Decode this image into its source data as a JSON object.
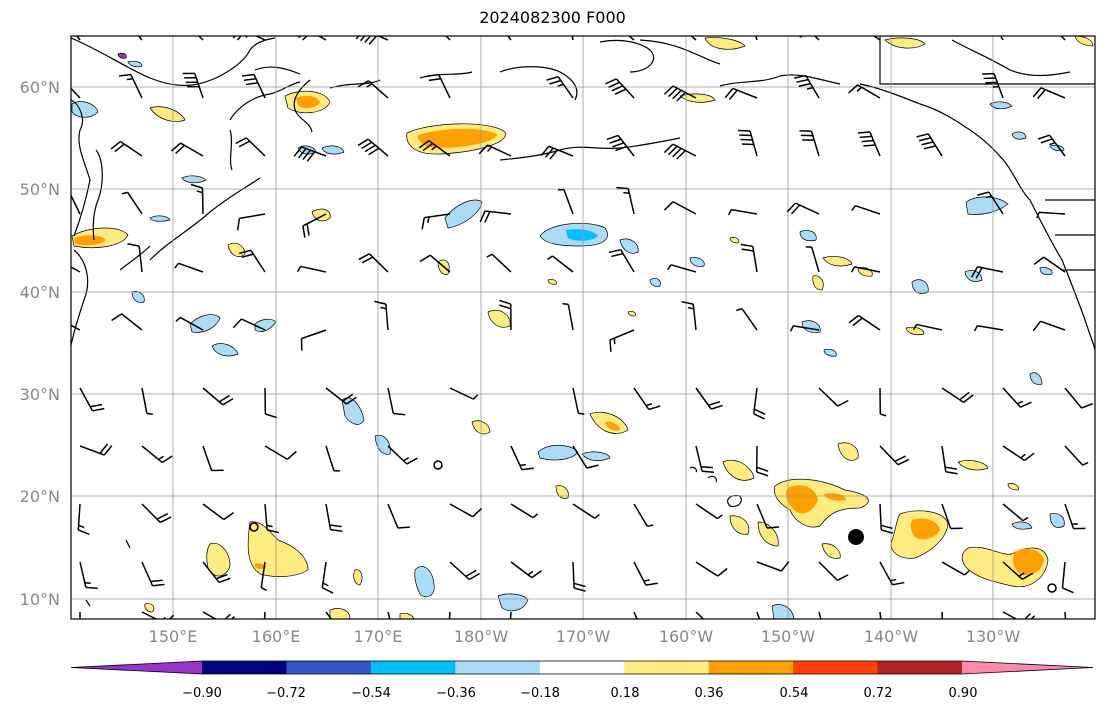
{
  "title": "2024082300 F000",
  "map": {
    "lon_range_east": [
      140,
      240
    ],
    "lat_range": [
      8,
      65
    ],
    "lat_labels": [
      "10°N",
      "20°N",
      "30°N",
      "40°N",
      "50°N",
      "60°N"
    ],
    "lon_labels": [
      "150°E",
      "160°E",
      "170°E",
      "180°W",
      "170°W",
      "160°W",
      "150°W",
      "140°W",
      "130°W"
    ],
    "grid": true
  },
  "colorbar": {
    "tick_labels": [
      "−0.90",
      "−0.72",
      "−0.54",
      "−0.36",
      "−0.18",
      "0.18",
      "0.36",
      "0.54",
      "0.72",
      "0.90"
    ],
    "colors": [
      "#9933cc",
      "#000080",
      "#3355cc",
      "#00bfff",
      "#aadcf8",
      "#ffffff",
      "#ffec80",
      "#ffa000",
      "#ff4000",
      "#b22222",
      "#ff88aa"
    ]
  }
}
